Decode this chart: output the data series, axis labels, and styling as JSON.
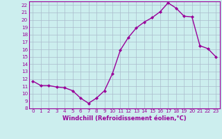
{
  "x": [
    0,
    1,
    2,
    3,
    4,
    5,
    6,
    7,
    8,
    9,
    10,
    11,
    12,
    13,
    14,
    15,
    16,
    17,
    18,
    19,
    20,
    21,
    22,
    23
  ],
  "y": [
    11.7,
    11.1,
    11.1,
    10.9,
    10.8,
    10.4,
    9.4,
    8.7,
    9.4,
    10.4,
    12.7,
    15.9,
    17.6,
    18.9,
    19.7,
    20.3,
    21.1,
    22.3,
    21.6,
    20.5,
    20.4,
    16.5,
    16.1,
    15.0
  ],
  "line_color": "#990099",
  "marker": "D",
  "marker_size": 2.0,
  "bg_color": "#cceeee",
  "grid_color": "#aabbcc",
  "xlabel": "Windchill (Refroidissement éolien,°C)",
  "ylim": [
    8,
    22.5
  ],
  "xlim": [
    -0.5,
    23.5
  ],
  "yticks": [
    8,
    9,
    10,
    11,
    12,
    13,
    14,
    15,
    16,
    17,
    18,
    19,
    20,
    21,
    22
  ],
  "xticks": [
    0,
    1,
    2,
    3,
    4,
    5,
    6,
    7,
    8,
    9,
    10,
    11,
    12,
    13,
    14,
    15,
    16,
    17,
    18,
    19,
    20,
    21,
    22,
    23
  ],
  "label_fontsize": 6.0,
  "tick_fontsize": 5.2,
  "linewidth": 1.0
}
